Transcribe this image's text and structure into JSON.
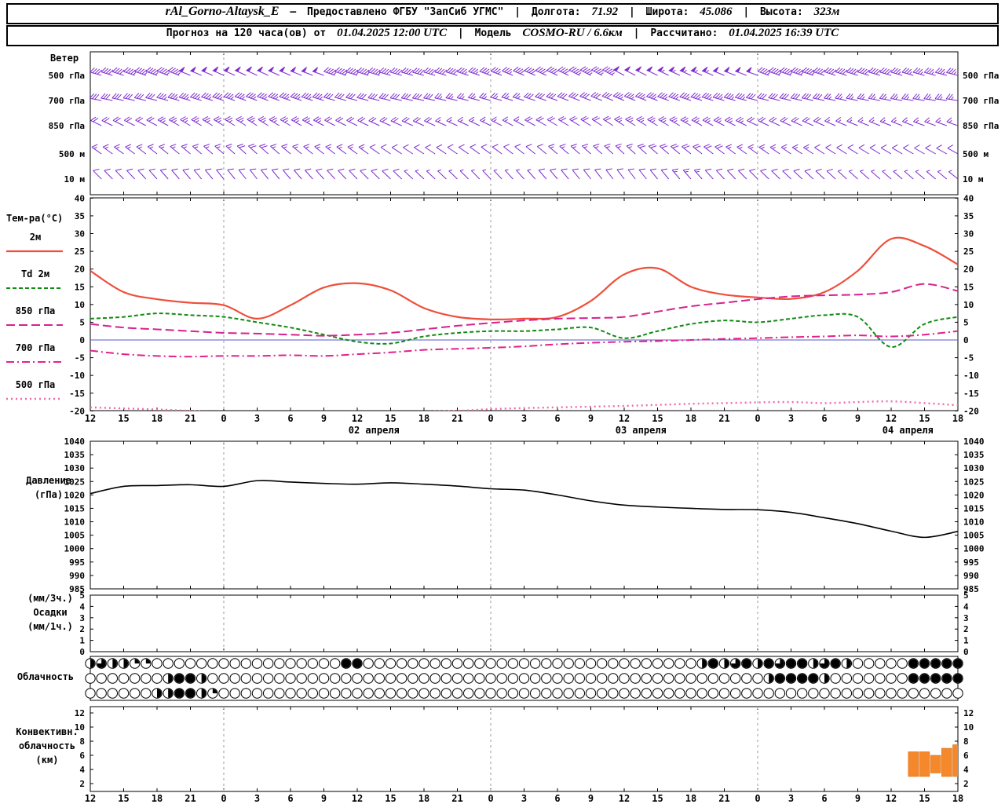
{
  "colors": {
    "wind_barb": "#7e2ccf",
    "temp_2m": "#ee4f3b",
    "td_2m": "#118a11",
    "t850": "#d6218f",
    "t700": "#e0218a",
    "t500": "#ef6aaa",
    "pressure": "#000000",
    "conv_bar": "#f5882b",
    "zero_line": "#5555cc",
    "day_grid": "#999999"
  },
  "header": {
    "station": "rAl_Gorno-Altaysk_E",
    "dash": "—",
    "provider": "Предоставлено ФГБУ \"ЗапСиб УГМС\"",
    "sep": "|",
    "lon_label": "Долгота:",
    "lon_value": "71.92",
    "lat_label": "Широта:",
    "lat_value": "45.086",
    "alt_label": "Высота:",
    "alt_value": "323м",
    "line2_prefix": "Прогноз на 120 часа(ов) от",
    "run_value": "01.04.2025 12:00 UTC",
    "model_label": "Модель",
    "model_value": "COSMO-RU / 6.6км",
    "calc_label": "Рассчитано:",
    "calc_value": "01.04.2025 16:39 UTC"
  },
  "time_axis": {
    "hours_total": 78,
    "step_hours": 3,
    "tick_labels": [
      "12",
      "15",
      "18",
      "21",
      "0",
      "3",
      "6",
      "9",
      "12",
      "15",
      "18",
      "21",
      "0",
      "3",
      "6",
      "9",
      "12",
      "15",
      "18",
      "21",
      "0",
      "3",
      "6",
      "9",
      "12",
      "15",
      "18"
    ],
    "date_labels": [
      {
        "text": "02 апреля",
        "t": 25.5
      },
      {
        "text": "03 апреля",
        "t": 49.5
      },
      {
        "text": "04 апреля",
        "t": 73.5
      }
    ],
    "day_boundaries_t": [
      12,
      36,
      60
    ]
  },
  "chart_data": [
    {
      "type": "wind-barbs",
      "title": "Ветер",
      "units": "kt",
      "levels": [
        {
          "name": "500 гПа",
          "dirs": [
            285,
            288,
            290,
            292,
            294,
            295,
            293,
            290,
            288,
            286,
            285,
            287,
            290,
            293,
            295,
            297,
            298,
            296,
            294,
            292,
            290,
            289,
            288,
            287,
            286,
            285,
            284
          ],
          "speeds": [
            40,
            42,
            45,
            48,
            50,
            52,
            50,
            48,
            45,
            42,
            40,
            38,
            36,
            38,
            40,
            44,
            48,
            52,
            55,
            52,
            48,
            45,
            42,
            40,
            38,
            36,
            35
          ]
        },
        {
          "name": "700 гПа",
          "dirs": [
            280,
            282,
            284,
            286,
            288,
            290,
            289,
            287,
            285,
            283,
            282,
            283,
            285,
            287,
            289,
            291,
            292,
            290,
            288,
            286,
            284,
            283,
            282,
            281,
            280,
            279,
            278
          ],
          "speeds": [
            28,
            30,
            32,
            34,
            35,
            36,
            35,
            33,
            31,
            29,
            28,
            27,
            26,
            27,
            29,
            31,
            33,
            35,
            37,
            35,
            32,
            30,
            28,
            26,
            25,
            24,
            23
          ]
        },
        {
          "name": "850 гПа",
          "dirs": [
            295,
            296,
            298,
            300,
            301,
            302,
            300,
            298,
            296,
            294,
            293,
            294,
            296,
            298,
            300,
            302,
            303,
            301,
            299,
            297,
            295,
            294,
            293,
            292,
            291,
            290,
            289
          ],
          "speeds": [
            18,
            20,
            22,
            24,
            25,
            26,
            25,
            23,
            21,
            19,
            18,
            17,
            16,
            17,
            19,
            21,
            23,
            25,
            27,
            25,
            22,
            20,
            18,
            16,
            15,
            14,
            13
          ]
        },
        {
          "name": "500 м",
          "dirs": [
            305,
            306,
            308,
            310,
            311,
            312,
            310,
            308,
            306,
            304,
            303,
            304,
            306,
            308,
            310,
            312,
            313,
            311,
            309,
            307,
            305,
            304,
            303,
            302,
            301,
            300,
            299
          ],
          "speeds": [
            12,
            14,
            15,
            16,
            17,
            18,
            17,
            15,
            13,
            12,
            11,
            10,
            10,
            11,
            13,
            15,
            17,
            18,
            19,
            18,
            16,
            14,
            12,
            11,
            10,
            9,
            9
          ]
        },
        {
          "name": "10 м",
          "dirs": [
            315,
            316,
            318,
            320,
            321,
            322,
            320,
            318,
            316,
            314,
            313,
            314,
            316,
            318,
            320,
            322,
            323,
            321,
            319,
            317,
            315,
            314,
            313,
            312,
            311,
            310,
            309
          ],
          "speeds": [
            8,
            9,
            10,
            11,
            12,
            12,
            11,
            10,
            9,
            8,
            7,
            7,
            6,
            7,
            8,
            10,
            11,
            12,
            13,
            12,
            10,
            9,
            8,
            7,
            6,
            6,
            5
          ]
        }
      ]
    },
    {
      "type": "line",
      "title": "Тем-ра(°C)",
      "ylim": [
        -20,
        40
      ],
      "yticks": [
        40,
        35,
        30,
        25,
        20,
        15,
        10,
        5,
        0,
        -5,
        -10,
        -15,
        -20
      ],
      "x_step_hours": 3,
      "series": [
        {
          "name": "2м",
          "color": "#ee4f3b",
          "dash": "",
          "width": 2.2,
          "values": [
            19.5,
            13.5,
            11.5,
            10.5,
            9.8,
            6.0,
            9.8,
            14.8,
            16.0,
            14.0,
            9.0,
            6.5,
            5.8,
            6.0,
            6.5,
            11.0,
            18.5,
            20.2,
            15.0,
            12.8,
            12.0,
            11.6,
            13.5,
            19.5,
            28.5,
            26.5,
            21.3
          ]
        },
        {
          "name": "Td 2м",
          "color": "#118a11",
          "dash": "5,3",
          "width": 2,
          "values": [
            6.0,
            6.5,
            7.5,
            7.0,
            6.5,
            5.0,
            3.5,
            1.5,
            -0.5,
            -1.0,
            1.0,
            2.0,
            2.5,
            2.5,
            3.0,
            3.5,
            0.5,
            2.5,
            4.5,
            5.5,
            5.0,
            6.0,
            7.0,
            6.5,
            -2.0,
            4.5,
            6.5
          ]
        },
        {
          "name": "850 гПа",
          "color": "#d6218f",
          "dash": "11,5",
          "width": 2,
          "values": [
            4.5,
            3.5,
            3.0,
            2.5,
            2.0,
            1.8,
            1.5,
            1.2,
            1.5,
            2.0,
            3.0,
            4.0,
            4.8,
            5.5,
            6.0,
            6.2,
            6.5,
            8.0,
            9.5,
            10.5,
            11.5,
            12.3,
            12.6,
            12.8,
            13.5,
            15.8,
            13.8
          ]
        },
        {
          "name": "700 гПа",
          "color": "#e0218a",
          "dash": "10,4,2,4",
          "width": 2,
          "values": [
            -3.0,
            -4.0,
            -4.5,
            -4.7,
            -4.5,
            -4.5,
            -4.3,
            -4.5,
            -4.0,
            -3.5,
            -2.8,
            -2.5,
            -2.2,
            -1.8,
            -1.2,
            -0.8,
            -0.5,
            -0.3,
            0.0,
            0.3,
            0.5,
            0.8,
            1.0,
            1.3,
            1.0,
            1.5,
            2.5
          ]
        },
        {
          "name": "500 гПа",
          "color": "#ef6aaa",
          "dash": "2,4",
          "width": 2.4,
          "values": [
            -19.0,
            -19.3,
            -19.6,
            -20.0,
            -20.4,
            -20.6,
            -20.5,
            -20.4,
            -20.6,
            -20.5,
            -20.2,
            -20.0,
            -19.5,
            -19.2,
            -19.0,
            -18.8,
            -18.6,
            -18.3,
            -18.0,
            -17.8,
            -17.6,
            -17.5,
            -17.8,
            -17.5,
            -17.3,
            -17.8,
            -18.4
          ]
        }
      ]
    },
    {
      "type": "line",
      "title": "Давление",
      "title2": "(гПа)",
      "ylim": [
        985,
        1040
      ],
      "yticks": [
        1040,
        1035,
        1030,
        1025,
        1020,
        1015,
        1010,
        1005,
        1000,
        995,
        990,
        985
      ],
      "x_step_hours": 3,
      "values": [
        1020.5,
        1023.2,
        1023.5,
        1023.8,
        1023.2,
        1025.3,
        1024.8,
        1024.3,
        1024.0,
        1024.5,
        1024.0,
        1023.3,
        1022.3,
        1021.8,
        1020.0,
        1017.8,
        1016.2,
        1015.5,
        1015.0,
        1014.6,
        1014.5,
        1013.5,
        1011.5,
        1009.3,
        1006.5,
        1004.2,
        1006.4
      ]
    },
    {
      "type": "bar",
      "title_lines": [
        "(мм/3ч.)",
        "Осадки",
        "(мм/1ч.)"
      ],
      "ylim": [
        0,
        5
      ],
      "yticks": [
        5,
        4,
        3,
        2,
        1,
        0
      ],
      "values": []
    },
    {
      "type": "cloud-symbols",
      "title": "Облачность",
      "quarters_max": 4,
      "rows": [
        [
          2,
          3,
          2,
          2,
          1,
          1,
          0,
          0,
          0,
          0,
          0,
          0,
          0,
          0,
          0,
          0,
          0,
          0,
          0,
          0,
          0,
          0,
          0,
          4,
          4,
          0,
          0,
          0,
          0,
          0,
          0,
          0,
          0,
          0,
          0,
          0,
          0,
          0,
          0,
          0,
          0,
          0,
          0,
          0,
          0,
          0,
          0,
          0,
          0,
          0,
          0,
          0,
          0,
          0,
          0,
          2,
          4,
          2,
          3,
          4,
          2,
          4,
          3,
          4,
          4,
          2,
          3,
          4,
          2,
          0,
          0,
          0,
          0,
          0,
          4,
          4,
          4,
          4,
          4
        ],
        [
          0,
          0,
          0,
          0,
          0,
          0,
          0,
          2,
          4,
          4,
          2,
          0,
          0,
          0,
          0,
          0,
          0,
          0,
          0,
          0,
          0,
          0,
          0,
          0,
          0,
          0,
          0,
          0,
          0,
          0,
          0,
          0,
          0,
          0,
          0,
          0,
          0,
          0,
          0,
          0,
          0,
          0,
          0,
          0,
          0,
          0,
          0,
          0,
          0,
          0,
          0,
          0,
          0,
          0,
          0,
          0,
          0,
          0,
          0,
          0,
          0,
          2,
          4,
          4,
          4,
          4,
          2,
          0,
          0,
          0,
          0,
          0,
          0,
          0,
          4,
          4,
          4,
          4,
          4
        ],
        [
          0,
          0,
          0,
          0,
          0,
          0,
          2,
          2,
          4,
          4,
          2,
          1,
          0,
          0,
          0,
          0,
          0,
          0,
          0,
          0,
          0,
          0,
          0,
          0,
          0,
          0,
          0,
          0,
          0,
          0,
          0,
          0,
          0,
          0,
          0,
          0,
          0,
          0,
          0,
          0,
          0,
          0,
          0,
          0,
          0,
          0,
          0,
          0,
          0,
          0,
          0,
          0,
          0,
          0,
          0,
          0,
          0,
          0,
          0,
          0,
          0,
          0,
          0,
          0,
          0,
          0,
          0,
          0,
          0,
          0,
          0,
          0,
          0,
          0,
          0,
          0,
          0,
          0,
          0
        ]
      ]
    },
    {
      "type": "bar",
      "title_lines": [
        "Конвективн.",
        "облачность",
        "(км)"
      ],
      "ylim": [
        2,
        12
      ],
      "yticks": [
        12,
        10,
        8,
        6,
        4,
        2
      ],
      "bars": [
        {
          "h": 74,
          "base": 3.0,
          "top": 6.5
        },
        {
          "h": 75,
          "base": 3.0,
          "top": 6.5
        },
        {
          "h": 76,
          "base": 3.5,
          "top": 6.0
        },
        {
          "h": 77,
          "base": 3.0,
          "top": 7.0
        },
        {
          "h": 78,
          "base": 3.0,
          "top": 7.5
        }
      ]
    }
  ]
}
